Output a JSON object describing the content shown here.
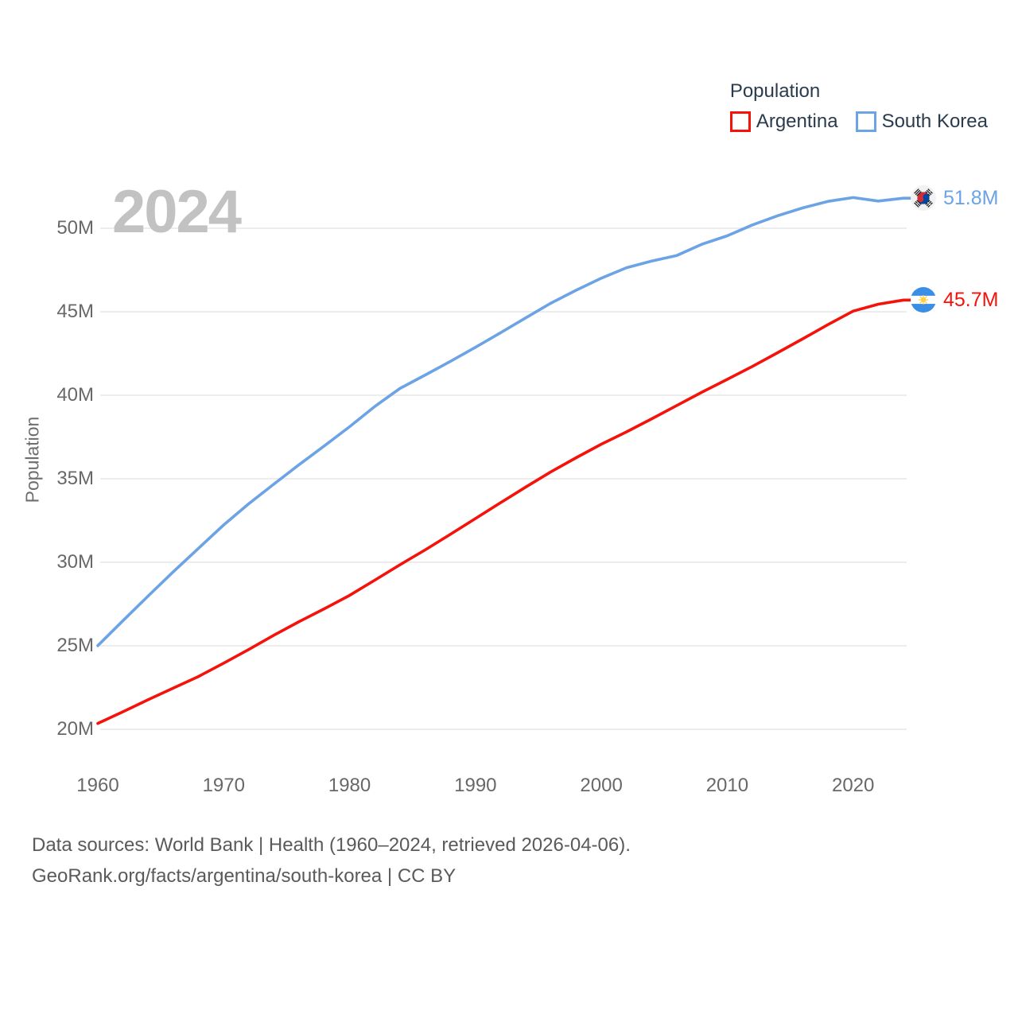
{
  "watermark": "2024",
  "legend": {
    "title": "Population",
    "items": [
      {
        "label": "Argentina",
        "color": "#f5120b"
      },
      {
        "label": "South Korea",
        "color": "#6ba3e5"
      }
    ]
  },
  "chart_data": {
    "type": "line",
    "title": "Population",
    "ylabel": "Population",
    "units": "millions",
    "grid": "horizontal",
    "legend_position": "top-right",
    "xlim": [
      1960,
      2024
    ],
    "ylim": [
      20,
      50
    ],
    "x_ticks": [
      {
        "v": 1960,
        "label": "1960"
      },
      {
        "v": 1970,
        "label": "1970"
      },
      {
        "v": 1980,
        "label": "1980"
      },
      {
        "v": 1990,
        "label": "1990"
      },
      {
        "v": 2000,
        "label": "2000"
      },
      {
        "v": 2010,
        "label": "2010"
      },
      {
        "v": 2020,
        "label": "2020"
      }
    ],
    "y_ticks": [
      {
        "v": 20,
        "label": "20M"
      },
      {
        "v": 25,
        "label": "25M"
      },
      {
        "v": 30,
        "label": "30M"
      },
      {
        "v": 35,
        "label": "35M"
      },
      {
        "v": 40,
        "label": "40M"
      },
      {
        "v": 45,
        "label": "45M"
      },
      {
        "v": 50,
        "label": "50M"
      }
    ],
    "series": [
      {
        "id": "argentina",
        "name": "Argentina",
        "color": "#f5120b",
        "end_label": "45.7M",
        "end_value": 45.7,
        "flag": "argentina-flag",
        "x": [
          1960,
          1962,
          1964,
          1966,
          1968,
          1970,
          1972,
          1974,
          1976,
          1978,
          1980,
          1982,
          1984,
          1986,
          1988,
          1990,
          1992,
          1994,
          1996,
          1998,
          2000,
          2002,
          2004,
          2006,
          2008,
          2010,
          2012,
          2014,
          2016,
          2018,
          2020,
          2022,
          2024
        ],
        "values": [
          20.35,
          21.05,
          21.77,
          22.47,
          23.16,
          23.96,
          24.78,
          25.64,
          26.45,
          27.22,
          28.02,
          28.93,
          29.85,
          30.74,
          31.67,
          32.62,
          33.57,
          34.51,
          35.42,
          36.26,
          37.07,
          37.81,
          38.59,
          39.39,
          40.19,
          40.95,
          41.73,
          42.55,
          43.38,
          44.23,
          45.04,
          45.45,
          45.7
        ]
      },
      {
        "id": "south-korea",
        "name": "South Korea",
        "color": "#6ba3e5",
        "end_label": "51.8M",
        "end_value": 51.8,
        "flag": "south-korea-flag",
        "x": [
          1960,
          1962,
          1964,
          1966,
          1968,
          1970,
          1972,
          1974,
          1976,
          1978,
          1980,
          1982,
          1984,
          1986,
          1988,
          1990,
          1992,
          1994,
          1996,
          1998,
          2000,
          2002,
          2004,
          2006,
          2008,
          2010,
          2012,
          2014,
          2016,
          2018,
          2020,
          2022,
          2024
        ],
        "values": [
          25.01,
          26.51,
          27.98,
          29.44,
          30.84,
          32.24,
          33.51,
          34.69,
          35.85,
          36.97,
          38.12,
          39.33,
          40.41,
          41.21,
          42.03,
          42.87,
          43.75,
          44.64,
          45.52,
          46.29,
          47.01,
          47.64,
          48.04,
          48.37,
          49.05,
          49.55,
          50.2,
          50.75,
          51.22,
          51.61,
          51.84,
          51.63,
          51.8
        ]
      }
    ]
  },
  "footer": {
    "line1": "Data sources: World Bank | Health (1960–2024, retrieved 2026-04-06).",
    "line2": "GeoRank.org/facts/argentina/south-korea | CC BY"
  },
  "colors": {
    "gridline": "#ededed",
    "tick_text": "#686868",
    "legend_text": "#2a3b4d",
    "watermark": "#c2c2c2",
    "footer_text": "#5a5a5a"
  }
}
